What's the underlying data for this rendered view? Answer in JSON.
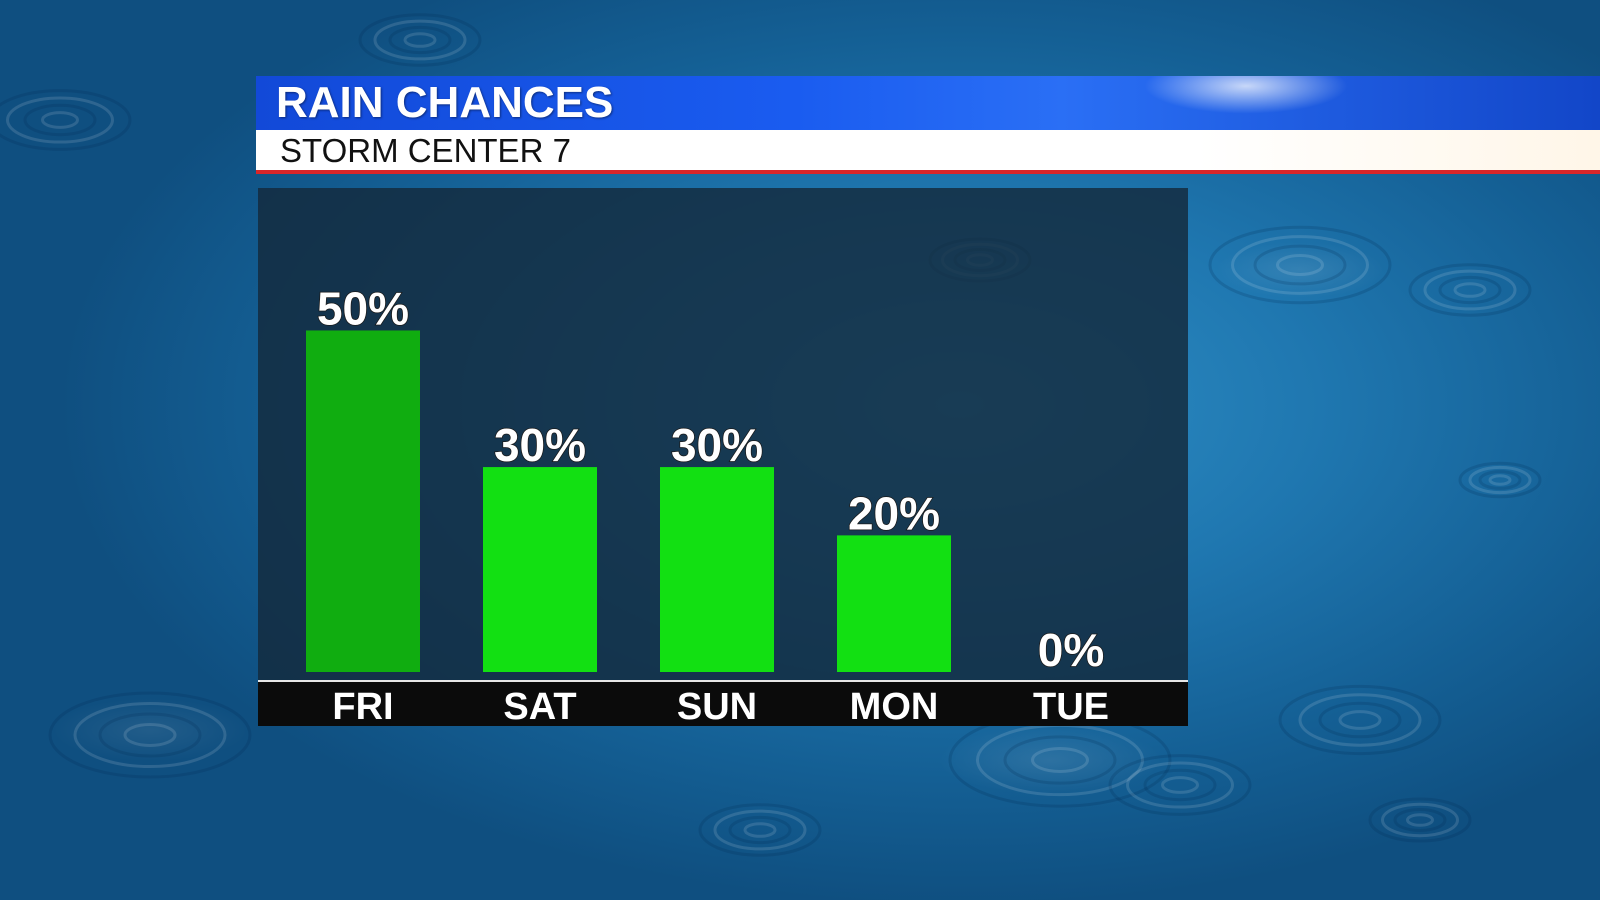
{
  "header": {
    "title": "RAIN CHANCES",
    "subtitle": "STORM CENTER 7"
  },
  "colors": {
    "title_bar": "#1a5cf0",
    "subtitle_accent": "#d8262a",
    "bar": "#12e012",
    "bar_first": "#10ad10"
  },
  "chart_data": {
    "type": "bar",
    "categories": [
      "FRI",
      "SAT",
      "SUN",
      "MON",
      "TUE"
    ],
    "values": [
      50,
      30,
      30,
      20,
      0
    ],
    "value_labels": [
      "50%",
      "30%",
      "30%",
      "20%",
      "0%"
    ],
    "ylim": [
      0,
      65
    ],
    "grid": false,
    "legend": "none"
  }
}
